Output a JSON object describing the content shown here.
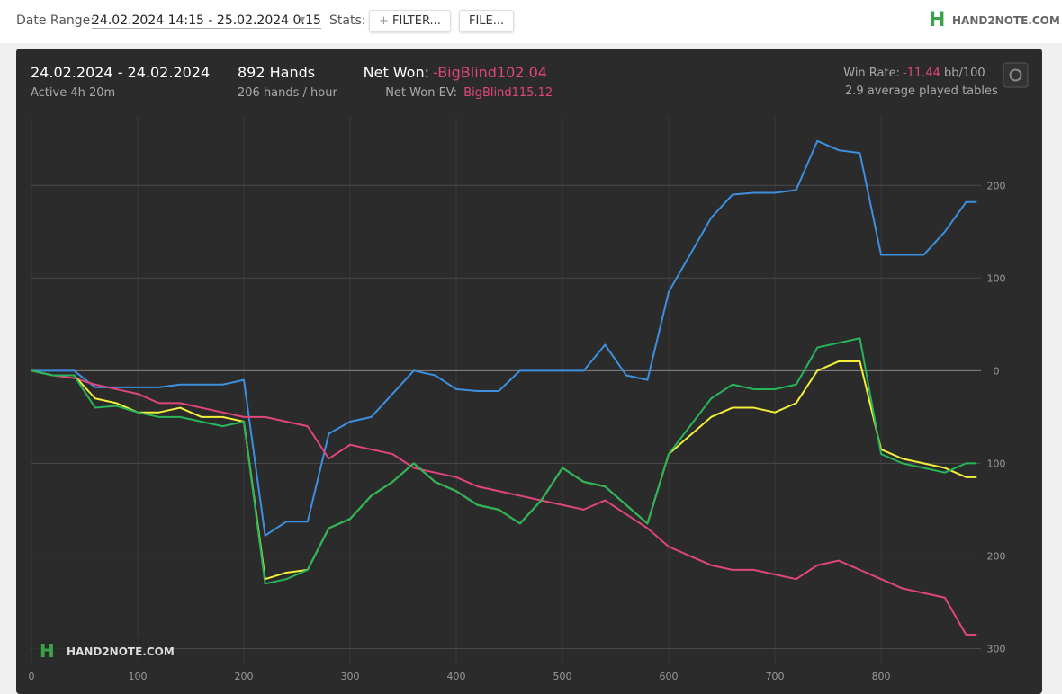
{
  "toolbar": {
    "date_label": "Date Range:",
    "date_value": "24.02.2024 14:15 - 25.02.2024 0:15",
    "stats_label": "Stats:",
    "filter_button": "FILTER...",
    "file_button": "FILE...",
    "logo": "HAND2NOTE.COM"
  },
  "summary": {
    "date_range": "24.02.2024 - 24.02.2024",
    "active": "Active 4h 20m",
    "hands": "892 Hands",
    "hands_per_hour": "206 hands / hour",
    "net_won_label": "Net Won:",
    "net_won_value": "-BigBlind102.04",
    "net_won_ev_label": "Net Won  EV:",
    "net_won_ev_value": "-BigBlind115.12",
    "win_rate_label": "Win Rate:",
    "win_rate_value": "-11.44",
    "win_rate_unit": "bb/100",
    "tables": "2.9 average played tables",
    "watermark": "HAND2NOTE.COM"
  },
  "chart_data": {
    "type": "line",
    "x": [
      0,
      20,
      40,
      60,
      80,
      100,
      120,
      140,
      160,
      180,
      200,
      220,
      240,
      260,
      280,
      300,
      320,
      340,
      360,
      380,
      400,
      420,
      440,
      460,
      480,
      500,
      520,
      540,
      560,
      580,
      600,
      620,
      640,
      660,
      680,
      700,
      720,
      740,
      760,
      780,
      800,
      820,
      840,
      860,
      880,
      890
    ],
    "series": [
      {
        "color": "#3d8fe0",
        "values": [
          0,
          0,
          0,
          -18,
          -18,
          -18,
          -18,
          -15,
          -15,
          -15,
          -10,
          -178,
          -163,
          -163,
          -68,
          -55,
          -50,
          -25,
          0,
          -5,
          -20,
          -22,
          -22,
          0,
          0,
          0,
          0,
          28,
          -5,
          -10,
          85,
          125,
          165,
          190,
          192,
          192,
          195,
          248,
          238,
          235,
          125,
          125,
          125,
          150,
          182,
          182
        ]
      },
      {
        "color": "#e0467c",
        "values": [
          0,
          -5,
          -8,
          -15,
          -20,
          -25,
          -35,
          -35,
          -40,
          -45,
          -50,
          -50,
          -55,
          -60,
          -95,
          -80,
          -85,
          -90,
          -105,
          -110,
          -115,
          -125,
          -130,
          -135,
          -140,
          -145,
          -150,
          -140,
          -155,
          -170,
          -190,
          -200,
          -210,
          -215,
          -215,
          -220,
          -225,
          -210,
          -205,
          -215,
          -225,
          -235,
          -240,
          -245,
          -285,
          -285
        ]
      },
      {
        "color": "#f2ef3a",
        "values": [
          0,
          -5,
          -5,
          -30,
          -35,
          -45,
          -45,
          -40,
          -50,
          -50,
          -55,
          -225,
          -218,
          -215,
          -170,
          -160,
          -135,
          -120,
          -100,
          -120,
          -130,
          -145,
          -150,
          -165,
          -140,
          -105,
          -120,
          -125,
          -145,
          -165,
          -90,
          -70,
          -50,
          -40,
          -40,
          -45,
          -35,
          0,
          10,
          10,
          -85,
          -95,
          -100,
          -105,
          -115,
          -115
        ]
      },
      {
        "color": "#27b55a",
        "values": [
          0,
          -5,
          -5,
          -40,
          -38,
          -45,
          -50,
          -50,
          -55,
          -60,
          -55,
          -230,
          -225,
          -215,
          -170,
          -160,
          -135,
          -120,
          -100,
          -120,
          -130,
          -145,
          -150,
          -165,
          -140,
          -105,
          -120,
          -125,
          -145,
          -165,
          -90,
          -60,
          -30,
          -15,
          -20,
          -20,
          -15,
          25,
          30,
          35,
          -90,
          -100,
          -105,
          -110,
          -100,
          -100
        ]
      }
    ],
    "xlim": [
      0,
      894
    ],
    "xticks": [
      0,
      100,
      200,
      300,
      400,
      500,
      600,
      700,
      800
    ],
    "ylim": [
      -318,
      274
    ],
    "yticks": [
      200,
      100,
      0,
      {
        "value": -100,
        "label": "100"
      },
      {
        "value": -200,
        "label": "200"
      },
      {
        "value": -300,
        "label": "300"
      }
    ],
    "grid": true
  }
}
